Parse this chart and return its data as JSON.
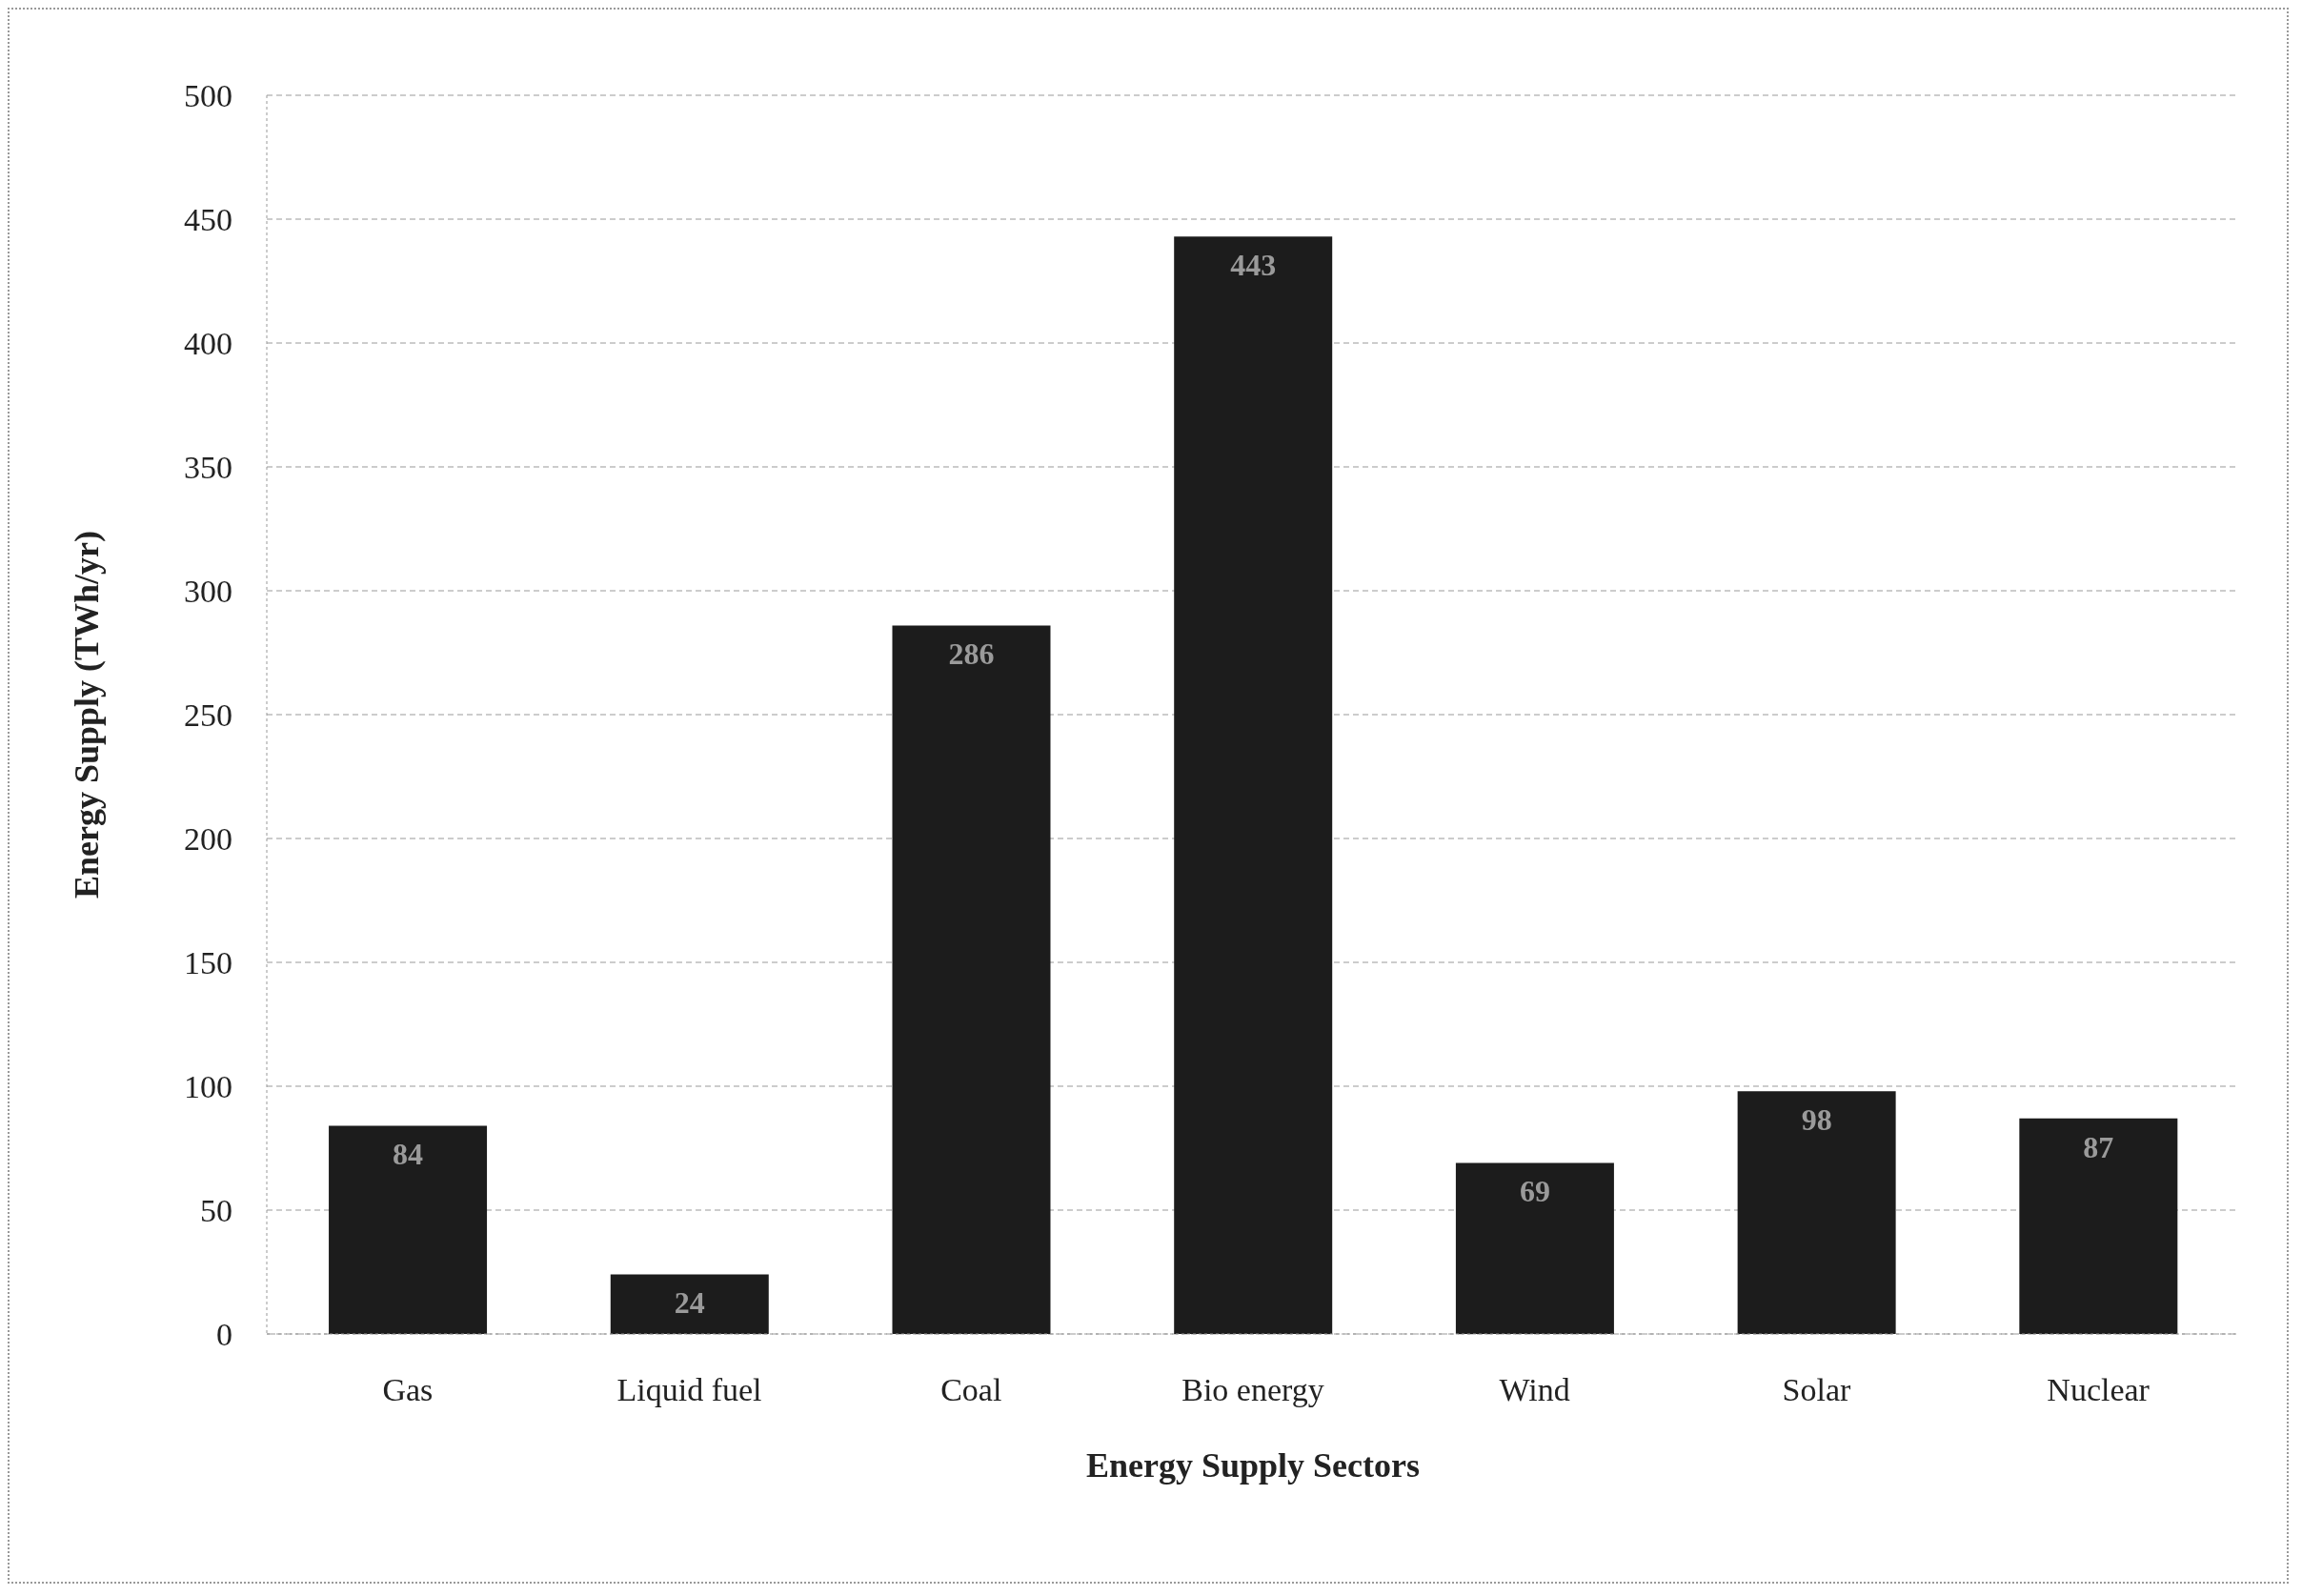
{
  "chart_data": {
    "type": "bar",
    "xlabel": "Energy Supply Sectors",
    "ylabel": "Energy Supply (TWh/yr)",
    "categories": [
      "Gas",
      "Liquid fuel",
      "Coal",
      "Bio energy",
      "Wind",
      "Solar",
      "Nuclear"
    ],
    "values": [
      84,
      24,
      286,
      443,
      69,
      98,
      87
    ],
    "color": "#1c1c1c",
    "data_labels": true,
    "ylim": [
      0,
      500
    ],
    "yticks": [
      0,
      50,
      100,
      150,
      200,
      250,
      300,
      350,
      400,
      450,
      500
    ],
    "grid": "y"
  }
}
